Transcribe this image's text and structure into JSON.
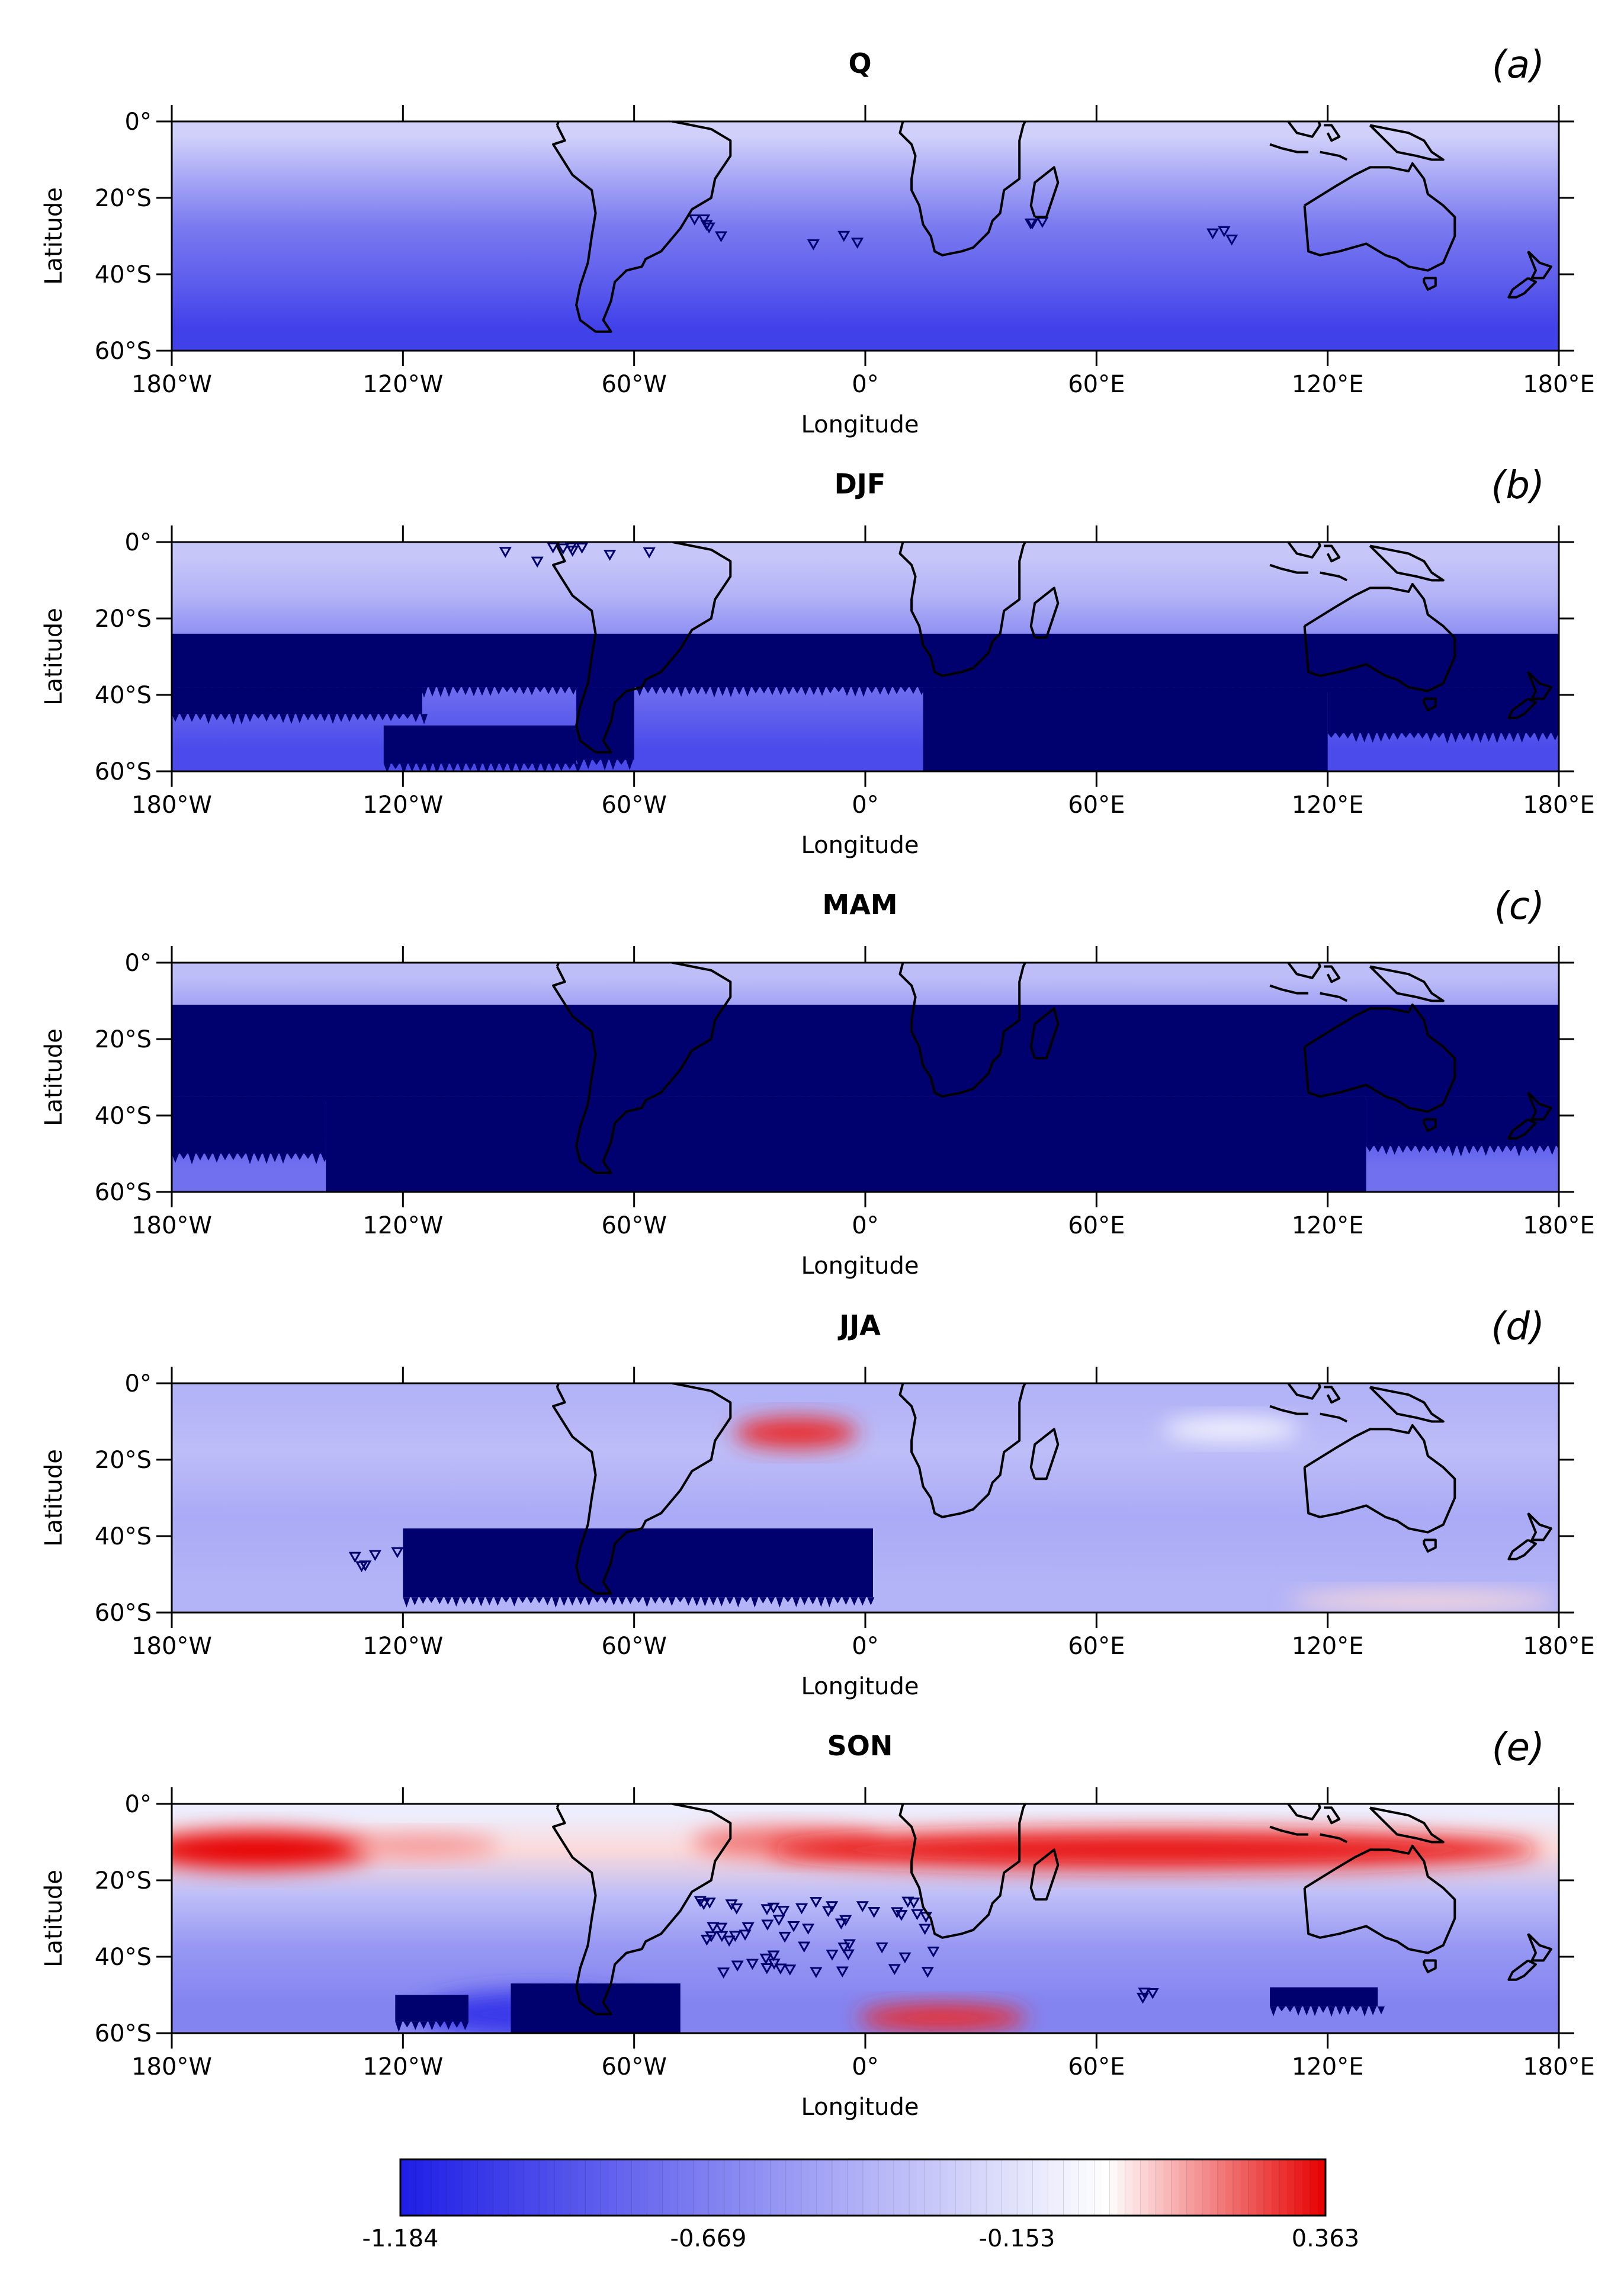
{
  "chart_data": [
    {
      "type": "heatmap",
      "title": "Q",
      "panel_label": "(a)",
      "xlabel": "Longitude",
      "ylabel": "Latitude",
      "x_ticks": [
        "180°W",
        "120°W",
        "60°W",
        "0°",
        "60°E",
        "120°E",
        "180°E"
      ],
      "y_ticks": [
        "0°",
        "20°S",
        "40°S",
        "60°S"
      ],
      "xlim": [
        -180,
        180
      ],
      "ylim": [
        -60,
        0
      ],
      "bands": [
        {
          "lat_from": 0,
          "lat_to": -8,
          "value": -0.25
        },
        {
          "lat_from": -8,
          "lat_to": -20,
          "value": -0.45
        },
        {
          "lat_from": -20,
          "lat_to": -35,
          "value": -0.7
        },
        {
          "lat_from": -35,
          "lat_to": -48,
          "value": -0.85
        },
        {
          "lat_from": -48,
          "lat_to": -60,
          "value": -1.0
        }
      ],
      "blobs": [],
      "significant_regions": [
        {
          "lon_from": -53,
          "lon_to": -34,
          "lat_from": -25,
          "lat_to": -31,
          "density": "sparse"
        },
        {
          "lon_from": -14,
          "lon_to": -1,
          "lat_from": -29,
          "lat_to": -33,
          "density": "sparse"
        },
        {
          "lon_from": 42,
          "lon_to": 53,
          "lat_from": -25,
          "lat_to": -29,
          "density": "sparse"
        },
        {
          "lon_from": 89,
          "lon_to": 100,
          "lat_from": -27,
          "lat_to": -33,
          "density": "sparse"
        }
      ]
    },
    {
      "type": "heatmap",
      "title": "DJF",
      "panel_label": "(b)",
      "xlabel": "Longitude",
      "ylabel": "Latitude",
      "x_ticks": [
        "180°W",
        "120°W",
        "60°W",
        "0°",
        "60°E",
        "120°E",
        "180°E"
      ],
      "y_ticks": [
        "0°",
        "20°S",
        "40°S",
        "60°S"
      ],
      "xlim": [
        -180,
        180
      ],
      "ylim": [
        -60,
        0
      ],
      "bands": [
        {
          "lat_from": 0,
          "lat_to": -8,
          "value": -0.3
        },
        {
          "lat_from": -8,
          "lat_to": -20,
          "value": -0.4
        },
        {
          "lat_from": -20,
          "lat_to": -35,
          "value": -0.65
        },
        {
          "lat_from": -35,
          "lat_to": -48,
          "value": -0.8
        },
        {
          "lat_from": -48,
          "lat_to": -60,
          "value": -0.95
        }
      ],
      "blobs": [],
      "significant_regions": [
        {
          "lon_from": -180,
          "lon_to": 180,
          "lat_from": -24,
          "lat_to": -38,
          "density": "dense"
        },
        {
          "lon_from": -180,
          "lon_to": -115,
          "lat_from": -38,
          "lat_to": -45,
          "density": "dense"
        },
        {
          "lon_from": -75,
          "lon_to": -60,
          "lat_from": -38,
          "lat_to": -57,
          "density": "dense"
        },
        {
          "lon_from": -125,
          "lon_to": -75,
          "lat_from": -48,
          "lat_to": -58,
          "density": "dense"
        },
        {
          "lon_from": 15,
          "lon_to": 120,
          "lat_from": -38,
          "lat_to": -60,
          "density": "dense"
        },
        {
          "lon_from": 120,
          "lon_to": 180,
          "lat_from": -38,
          "lat_to": -50,
          "density": "dense"
        },
        {
          "lon_from": -95,
          "lon_to": -45,
          "lat_from": -1,
          "lat_to": -5,
          "density": "sparse"
        }
      ]
    },
    {
      "type": "heatmap",
      "title": "MAM",
      "panel_label": "(c)",
      "xlabel": "Longitude",
      "ylabel": "Latitude",
      "x_ticks": [
        "180°W",
        "120°W",
        "60°W",
        "0°",
        "60°E",
        "120°E",
        "180°E"
      ],
      "y_ticks": [
        "0°",
        "20°S",
        "40°S",
        "60°S"
      ],
      "xlim": [
        -180,
        180
      ],
      "ylim": [
        -60,
        0
      ],
      "bands": [
        {
          "lat_from": 0,
          "lat_to": -8,
          "value": -0.35
        },
        {
          "lat_from": -8,
          "lat_to": -20,
          "value": -0.55
        },
        {
          "lat_from": -20,
          "lat_to": -35,
          "value": -0.8
        },
        {
          "lat_from": -35,
          "lat_to": -48,
          "value": -0.9
        },
        {
          "lat_from": -48,
          "lat_to": -60,
          "value": -0.75
        }
      ],
      "blobs": [],
      "significant_regions": [
        {
          "lon_from": -180,
          "lon_to": 180,
          "lat_from": -11,
          "lat_to": -35,
          "density": "dense"
        },
        {
          "lon_from": -140,
          "lon_to": 130,
          "lat_from": -35,
          "lat_to": -60,
          "density": "dense"
        },
        {
          "lon_from": -180,
          "lon_to": -140,
          "lat_from": -35,
          "lat_to": -50,
          "density": "dense"
        },
        {
          "lon_from": 130,
          "lon_to": 180,
          "lat_from": -35,
          "lat_to": -48,
          "density": "dense"
        }
      ]
    },
    {
      "type": "heatmap",
      "title": "JJA",
      "panel_label": "(d)",
      "xlabel": "Longitude",
      "ylabel": "Latitude",
      "x_ticks": [
        "180°W",
        "120°W",
        "60°W",
        "0°",
        "60°E",
        "120°E",
        "180°E"
      ],
      "y_ticks": [
        "0°",
        "20°S",
        "40°S",
        "60°S"
      ],
      "xlim": [
        -180,
        180
      ],
      "ylim": [
        -60,
        0
      ],
      "bands": [
        {
          "lat_from": 0,
          "lat_to": -10,
          "value": -0.4
        },
        {
          "lat_from": -10,
          "lat_to": -25,
          "value": -0.35
        },
        {
          "lat_from": -25,
          "lat_to": -45,
          "value": -0.45
        },
        {
          "lat_from": -45,
          "lat_to": -60,
          "value": -0.4
        }
      ],
      "blobs": [
        {
          "lon": -18,
          "lat": -13,
          "rx": 16,
          "ry": 4,
          "value": 0.3
        },
        {
          "lon": 95,
          "lat": -12,
          "rx": 18,
          "ry": 3,
          "value": -0.05
        },
        {
          "lon": 145,
          "lat": -57,
          "rx": 35,
          "ry": 2.5,
          "value": 0.05
        }
      ],
      "significant_regions": [
        {
          "lon_from": -120,
          "lon_to": 2,
          "lat_from": -38,
          "lat_to": -56,
          "density": "dense"
        },
        {
          "lon_from": -140,
          "lon_to": -120,
          "lat_from": -44,
          "lat_to": -49,
          "density": "sparse"
        }
      ]
    },
    {
      "type": "heatmap",
      "title": "SON",
      "panel_label": "(e)",
      "xlabel": "Longitude",
      "ylabel": "Latitude",
      "x_ticks": [
        "180°W",
        "120°W",
        "60°W",
        "0°",
        "60°E",
        "120°E",
        "180°E"
      ],
      "y_ticks": [
        "0°",
        "20°S",
        "40°S",
        "60°S"
      ],
      "xlim": [
        -180,
        180
      ],
      "ylim": [
        -60,
        0
      ],
      "bands": [
        {
          "lat_from": 0,
          "lat_to": -6,
          "value": -0.1
        },
        {
          "lat_from": -6,
          "lat_to": -18,
          "value": 0.05
        },
        {
          "lat_from": -18,
          "lat_to": -30,
          "value": -0.35
        },
        {
          "lat_from": -30,
          "lat_to": -45,
          "value": -0.55
        },
        {
          "lat_from": -45,
          "lat_to": -60,
          "value": -0.65
        }
      ],
      "blobs": [
        {
          "lon": -158,
          "lat": -12,
          "rx": 30,
          "ry": 5,
          "value": 0.36
        },
        {
          "lon": -115,
          "lat": -11,
          "rx": 20,
          "ry": 3,
          "value": 0.15
        },
        {
          "lon": -20,
          "lat": -10,
          "rx": 25,
          "ry": 4,
          "value": 0.2
        },
        {
          "lon": 75,
          "lat": -12,
          "rx": 100,
          "ry": 5,
          "value": 0.33
        },
        {
          "lon": 20,
          "lat": -56,
          "rx": 22,
          "ry": 3.5,
          "value": 0.3
        },
        {
          "lon": -85,
          "lat": -55,
          "rx": 30,
          "ry": 6,
          "value": -1.05
        }
      ],
      "significant_regions": [
        {
          "lon_from": -92,
          "lon_to": -48,
          "lat_from": -47,
          "lat_to": -60,
          "density": "dense"
        },
        {
          "lon_from": -122,
          "lon_to": -103,
          "lat_from": -50,
          "lat_to": -57,
          "density": "dense"
        },
        {
          "lon_from": 105,
          "lon_to": 133,
          "lat_from": -48,
          "lat_to": -53,
          "density": "dense"
        },
        {
          "lon_from": 72,
          "lon_to": 100,
          "lat_from": -49,
          "lat_to": -51,
          "density": "sparse"
        },
        {
          "lon_from": -45,
          "lon_to": 20,
          "lat_from": -25,
          "lat_to": -44,
          "density": "sparse"
        }
      ]
    }
  ],
  "colorbar": {
    "min": -1.184,
    "max": 0.363,
    "tick_values": [
      -1.184,
      -0.669,
      -0.153,
      0.363
    ],
    "tick_labels": [
      "-1.184",
      "-0.669",
      "-0.153",
      "0.363"
    ],
    "color_low": "#1e1ee6",
    "color_mid": "#ffffff",
    "color_high": "#e60000"
  },
  "significance_color": "#00006e",
  "coastline_color": "#000000"
}
